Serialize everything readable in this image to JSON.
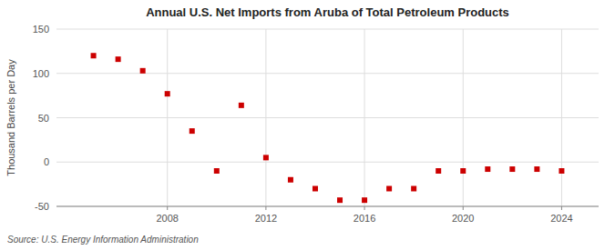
{
  "chart_data": {
    "type": "scatter",
    "title": "Annual U.S. Net Imports from Aruba of Total Petroleum Products",
    "ylabel": "Thousand Barrels per Day",
    "source": "Source: U.S. Energy Information Administration",
    "x": [
      2005,
      2006,
      2007,
      2008,
      2009,
      2010,
      2011,
      2012,
      2013,
      2014,
      2015,
      2016,
      2017,
      2018,
      2019,
      2020,
      2021,
      2022,
      2023,
      2024
    ],
    "values": [
      120,
      116,
      103,
      77,
      35,
      -10,
      64,
      5,
      -20,
      -30,
      -43,
      -43,
      -30,
      -30,
      -10,
      -10,
      -8,
      -8,
      -8,
      -10
    ],
    "color": "#CC0000",
    "marker": "square",
    "xlim": [
      2003.5,
      2025.5
    ],
    "ylim": [
      -50,
      150
    ],
    "xticks": [
      2008,
      2012,
      2016,
      2020,
      2024
    ],
    "yticks": [
      -50,
      0,
      50,
      100,
      150
    ],
    "grid": true
  }
}
